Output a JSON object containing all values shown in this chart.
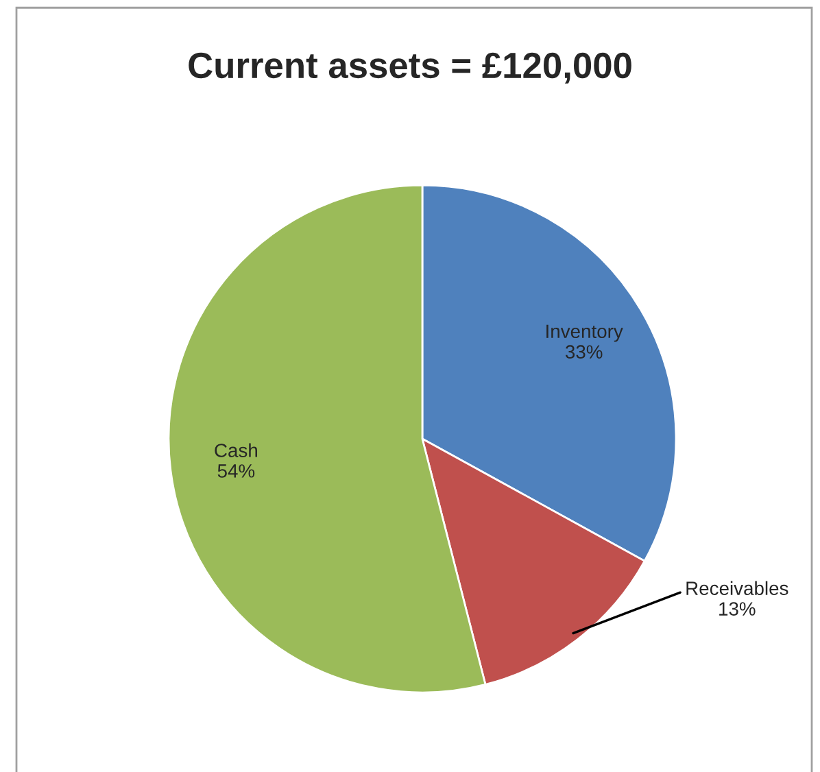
{
  "chart_data": {
    "type": "pie",
    "title": "Current assets = £120,000",
    "categories": [
      "Inventory",
      "Receivables",
      "Cash"
    ],
    "values": [
      33,
      13,
      54
    ],
    "value_labels": [
      "33%",
      "13%",
      "54%"
    ],
    "colors": [
      "#4f81bd",
      "#c0504d",
      "#9bbb59"
    ],
    "legend": false
  }
}
